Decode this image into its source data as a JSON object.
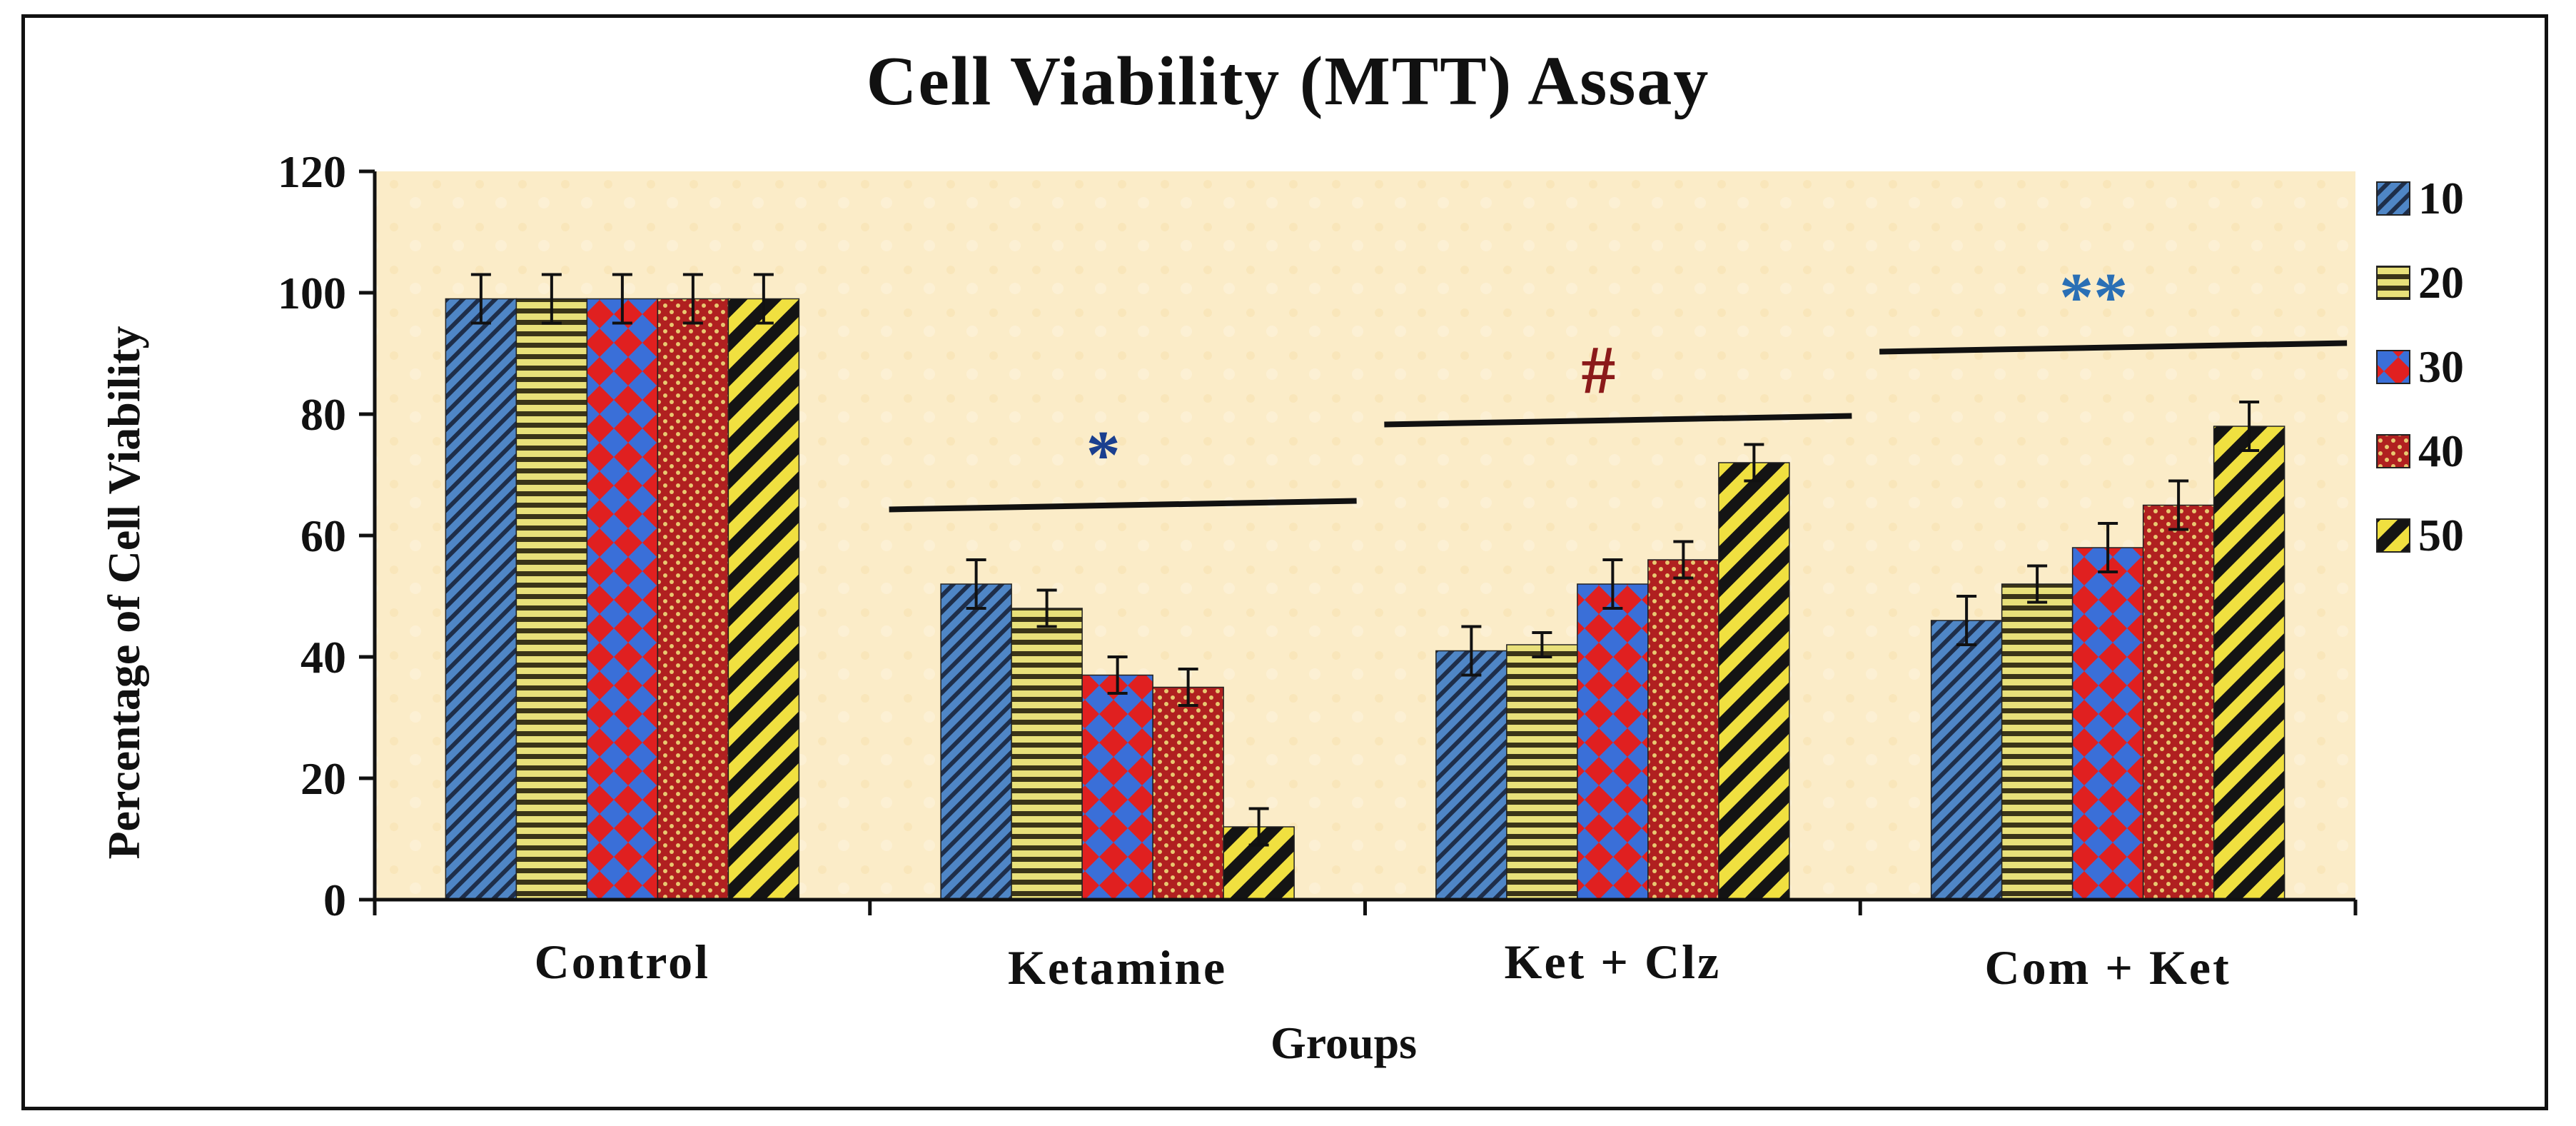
{
  "chart_data": {
    "type": "bar",
    "title": "Cell Viability  (MTT) Assay",
    "xlabel": "Groups",
    "ylabel": "Percentage of Cell Viability",
    "ylim": [
      0,
      120
    ],
    "yticks": [
      0,
      20,
      40,
      60,
      80,
      100,
      120
    ],
    "categories": [
      "Control",
      "Ketamine",
      "Ket + Clz",
      "Com + Ket"
    ],
    "series": [
      {
        "name": "10",
        "values": [
          99,
          52,
          41,
          46
        ],
        "errors": [
          4,
          4,
          4,
          4
        ]
      },
      {
        "name": "20",
        "values": [
          99,
          48,
          42,
          52
        ],
        "errors": [
          4,
          3,
          2,
          3
        ]
      },
      {
        "name": "30",
        "values": [
          99,
          37,
          52,
          58
        ],
        "errors": [
          4,
          3,
          4,
          4
        ]
      },
      {
        "name": "40",
        "values": [
          99,
          35,
          56,
          65
        ],
        "errors": [
          4,
          3,
          3,
          4
        ]
      },
      {
        "name": "50",
        "values": [
          99,
          12,
          72,
          78
        ],
        "errors": [
          4,
          3,
          3,
          4
        ]
      }
    ],
    "legend_position": "right",
    "annotations": [
      {
        "category": "Ketamine",
        "text": "*",
        "color": "#1a3f8f",
        "line_value": 65
      },
      {
        "category": "Ket + Clz",
        "text": "#",
        "color": "#8b1a1a",
        "line_value": 79
      },
      {
        "category": "Com + Ket",
        "text": "**",
        "color": "#2a6fb5",
        "line_value": 91
      }
    ],
    "colors": {
      "series10": "#4f86c6",
      "series20": "#e8e07a",
      "series30": "#e02020",
      "series40": "#b02020",
      "series50": "#f0e040",
      "plot_background": "#fbecc8"
    }
  }
}
